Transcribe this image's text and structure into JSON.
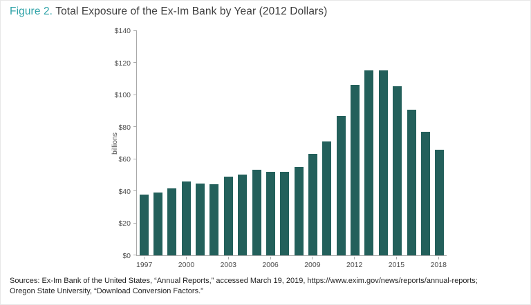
{
  "header": {
    "figure_label": "Figure 2.",
    "title": "Total Exposure of the Ex-Im Bank by Year (2012 Dollars)"
  },
  "chart_data": {
    "type": "bar",
    "title": "Total Exposure of the Ex-Im Bank by Year (2012 Dollars)",
    "ylabel": "billions",
    "xlabel": "",
    "ylim": [
      0,
      140
    ],
    "grid": false,
    "legend": false,
    "bar_color": "#23605b",
    "axis_color": "#a9a9a9",
    "accent_color": "#2fa3a8",
    "y_ticks": [
      {
        "value": 0,
        "label": "$0"
      },
      {
        "value": 20,
        "label": "$20"
      },
      {
        "value": 40,
        "label": "$40"
      },
      {
        "value": 60,
        "label": "$60"
      },
      {
        "value": 80,
        "label": "$80"
      },
      {
        "value": 100,
        "label": "$100"
      },
      {
        "value": 120,
        "label": "$120"
      },
      {
        "value": 140,
        "label": "$140"
      }
    ],
    "labeled_years": [
      1997,
      2000,
      2003,
      2006,
      2009,
      2012,
      2015,
      2018
    ],
    "categories": [
      1997,
      1998,
      1999,
      2000,
      2001,
      2002,
      2003,
      2004,
      2005,
      2006,
      2007,
      2008,
      2009,
      2010,
      2011,
      2012,
      2013,
      2014,
      2015,
      2016,
      2017,
      2018
    ],
    "values": [
      38,
      39,
      42,
      46,
      45,
      44.5,
      49,
      50.5,
      53.5,
      52,
      52,
      55,
      63.5,
      71,
      87,
      106.5,
      115.5,
      115.5,
      105.5,
      91,
      77,
      66
    ]
  },
  "footer": {
    "sources_line1": "Sources: Ex-Im Bank of the United States, “Annual Reports,” accessed March 19, 2019, https://www.exim.gov/news/reports/annual-reports;",
    "sources_line2": "Oregon State University, “Download Conversion Factors.”"
  }
}
